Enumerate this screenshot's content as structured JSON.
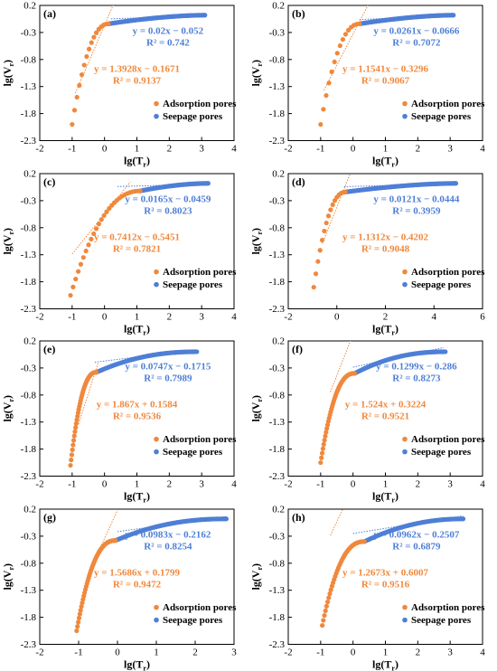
{
  "colors": {
    "adsorption": "#f0883c",
    "seepage": "#4e7fd6",
    "axis": "#000000"
  },
  "legend": {
    "adsorption": "Adsorption pores",
    "seepage": "Seepage pores"
  },
  "axes": {
    "xlabel": "lg(T",
    "xlabel_sub": "r",
    "ylabel": "lg(V",
    "ylabel_sub": "r"
  },
  "chart_data": [
    {
      "type": "scatter",
      "panel": "(a)",
      "xlim": [
        -2,
        4
      ],
      "ylim": [
        -2.3,
        0.2
      ],
      "xticks": [
        -2,
        -1,
        0,
        1,
        2,
        3,
        4
      ],
      "yticks": [
        -2.3,
        -1.8,
        -1.3,
        -0.8,
        -0.3,
        0.2
      ],
      "adsorption": {
        "x_start": -1.0,
        "x_end": 0.12,
        "y_start": -2.0,
        "y_end": -0.14,
        "n": 16,
        "shape": 0.6
      },
      "seepage": {
        "x_start": 0.12,
        "x_end": 3.1,
        "y_start": -0.14,
        "y_end": 0.02,
        "n": 90,
        "shape": 0.35
      },
      "fit_ads": {
        "slope": 1.3928,
        "intercept": -0.1671,
        "x_range": [
          -0.9,
          0.5
        ]
      },
      "fit_seep": {
        "slope": 0.02,
        "intercept": -0.052,
        "x_range": [
          0.2,
          3.1
        ]
      },
      "eq_ads": "y = 1.3928x − 0.1671",
      "r2_ads": "R² = 0.9137",
      "eq_seep": "y = 0.02x − 0.052",
      "r2_seep": "R² = 0.742"
    },
    {
      "type": "scatter",
      "panel": "(b)",
      "xlim": [
        -2,
        4
      ],
      "ylim": [
        -2.3,
        0.2
      ],
      "xticks": [
        -2,
        -1,
        0,
        1,
        2,
        3,
        4
      ],
      "yticks": [
        -2.3,
        -1.8,
        -1.3,
        -0.8,
        -0.3,
        0.2
      ],
      "adsorption": {
        "x_start": -1.0,
        "x_end": 0.2,
        "y_start": -2.0,
        "y_end": -0.14,
        "n": 15,
        "shape": 0.6
      },
      "seepage": {
        "x_start": 0.2,
        "x_end": 3.1,
        "y_start": -0.14,
        "y_end": 0.02,
        "n": 90,
        "shape": 0.35
      },
      "fit_ads": {
        "slope": 1.1541,
        "intercept": -0.3296,
        "x_range": [
          -0.9,
          0.5
        ]
      },
      "fit_seep": {
        "slope": 0.0261,
        "intercept": -0.0666,
        "x_range": [
          0.2,
          3.1
        ]
      },
      "eq_ads": "y = 1.1541x − 0.3296",
      "r2_ads": "R² = 0.9067",
      "eq_seep": "y = 0.0261x − 0.0666",
      "r2_seep": "R² = 0.7072"
    },
    {
      "type": "scatter",
      "panel": "(c)",
      "xlim": [
        -2,
        4
      ],
      "ylim": [
        -2.3,
        0.2
      ],
      "xticks": [
        -2,
        -1,
        0,
        1,
        2,
        3,
        4
      ],
      "yticks": [
        -2.3,
        -1.8,
        -1.3,
        -0.8,
        -0.3,
        0.2
      ],
      "adsorption": {
        "x_start": -1.05,
        "x_end": 1.1,
        "y_start": -2.05,
        "y_end": -0.12,
        "n": 28,
        "shape": 0.6
      },
      "seepage": {
        "x_start": 1.1,
        "x_end": 3.2,
        "y_start": -0.12,
        "y_end": 0.02,
        "n": 70,
        "shape": 0.4
      },
      "fit_ads": {
        "slope": 0.7412,
        "intercept": -0.5451,
        "x_range": [
          -1.0,
          0.8
        ]
      },
      "fit_seep": {
        "slope": 0.0165,
        "intercept": -0.0459,
        "x_range": [
          0.4,
          3.2
        ]
      },
      "eq_ads": "y = 0.7412x − 0.5451",
      "r2_ads": "R² = 0.7821",
      "eq_seep": "y = 0.0165x − 0.0459",
      "r2_seep": "R² = 0.8023"
    },
    {
      "type": "scatter",
      "panel": "(d)",
      "xlim": [
        -2,
        6
      ],
      "ylim": [
        -2.3,
        0.2
      ],
      "xticks": [
        -2,
        0,
        2,
        4,
        6
      ],
      "yticks": [
        -2.3,
        -1.8,
        -1.3,
        -0.8,
        -0.3,
        0.2
      ],
      "adsorption": {
        "x_start": -0.95,
        "x_end": 0.35,
        "y_start": -1.9,
        "y_end": -0.14,
        "n": 16,
        "shape": 0.6
      },
      "seepage": {
        "x_start": 0.35,
        "x_end": 4.9,
        "y_start": -0.14,
        "y_end": 0.02,
        "n": 95,
        "shape": 0.35
      },
      "fit_ads": {
        "slope": 1.1312,
        "intercept": -0.4202,
        "x_range": [
          -0.6,
          0.6
        ]
      },
      "fit_seep": {
        "slope": 0.0121,
        "intercept": -0.0444,
        "x_range": [
          0.3,
          4.9
        ]
      },
      "eq_ads": "y = 1.1312x − 0.4202",
      "r2_ads": "R² = 0.9048",
      "eq_seep": "y = 0.0121x − 0.0444",
      "r2_seep": "R² = 0.3959"
    },
    {
      "type": "scatter",
      "panel": "(e)",
      "xlim": [
        -2,
        4
      ],
      "ylim": [
        -2.3,
        0.2
      ],
      "xticks": [
        -2,
        -1,
        0,
        1,
        2,
        3,
        4
      ],
      "yticks": [
        -2.3,
        -1.8,
        -1.3,
        -0.8,
        -0.3,
        0.2
      ],
      "adsorption": {
        "x_start": -1.05,
        "x_end": -0.25,
        "y_start": -2.1,
        "y_end": -0.38,
        "n": 42,
        "shape": 0.7
      },
      "seepage": {
        "x_start": -0.25,
        "x_end": 2.85,
        "y_start": -0.38,
        "y_end": 0.0,
        "n": 80,
        "shape": 0.6
      },
      "fit_ads": {
        "slope": 1.867,
        "intercept": 0.1584,
        "x_range": [
          -0.8,
          -0.2
        ]
      },
      "fit_seep": {
        "slope": 0.0747,
        "intercept": -0.1715,
        "x_range": [
          -0.3,
          2.8
        ]
      },
      "eq_ads": "y = 1.867x + 0.1584",
      "r2_ads": "R² = 0.9536",
      "eq_seep": "y = 0.0747x − 0.1715",
      "r2_seep": "R² = 0.7989"
    },
    {
      "type": "scatter",
      "panel": "(f)",
      "xlim": [
        -2,
        4
      ],
      "ylim": [
        -2.3,
        0.2
      ],
      "xticks": [
        -2,
        -1,
        0,
        1,
        2,
        3,
        4
      ],
      "yticks": [
        -2.3,
        -1.8,
        -1.3,
        -0.8,
        -0.3,
        0.2
      ],
      "adsorption": {
        "x_start": -1.0,
        "x_end": 0.05,
        "y_start": -2.05,
        "y_end": -0.4,
        "n": 45,
        "shape": 0.7
      },
      "seepage": {
        "x_start": 0.05,
        "x_end": 2.85,
        "y_start": -0.4,
        "y_end": 0.0,
        "n": 80,
        "shape": 0.6
      },
      "fit_ads": {
        "slope": 1.524,
        "intercept": 0.3224,
        "x_range": [
          -0.7,
          0.0
        ]
      },
      "fit_seep": {
        "slope": 0.1299,
        "intercept": -0.286,
        "x_range": [
          0.0,
          2.8
        ]
      },
      "eq_ads": "y = 1.524x + 0.3224",
      "r2_ads": "R² = 0.9521",
      "eq_seep": "y = 0.1299x − 0.286",
      "r2_seep": "R² = 0.8273"
    },
    {
      "type": "scatter",
      "panel": "(g)",
      "xlim": [
        -2,
        3
      ],
      "ylim": [
        -2.3,
        0.2
      ],
      "xticks": [
        -2,
        -1,
        0,
        1,
        2,
        3
      ],
      "yticks": [
        -2.3,
        -1.8,
        -1.3,
        -0.8,
        -0.3,
        0.2
      ],
      "adsorption": {
        "x_start": -1.05,
        "x_end": -0.05,
        "y_start": -2.05,
        "y_end": -0.38,
        "n": 50,
        "shape": 0.7
      },
      "seepage": {
        "x_start": -0.05,
        "x_end": 2.8,
        "y_start": -0.38,
        "y_end": 0.02,
        "n": 90,
        "shape": 0.6
      },
      "fit_ads": {
        "slope": 1.5686,
        "intercept": 0.1799,
        "x_range": [
          -0.7,
          0.0
        ]
      },
      "fit_seep": {
        "slope": 0.0983,
        "intercept": -0.2162,
        "x_range": [
          0.0,
          2.8
        ]
      },
      "eq_ads": "y = 1.5686x + 0.1799",
      "r2_ads": "R² = 0.9472",
      "eq_seep": "y = 0.0983x − 0.2162",
      "r2_seep": "R² = 0.8254"
    },
    {
      "type": "scatter",
      "panel": "(h)",
      "xlim": [
        -2,
        4
      ],
      "ylim": [
        -2.3,
        0.2
      ],
      "xticks": [
        -2,
        -1,
        0,
        1,
        2,
        3,
        4
      ],
      "yticks": [
        -2.3,
        -1.8,
        -1.3,
        -0.8,
        -0.3,
        0.2
      ],
      "adsorption": {
        "x_start": -0.95,
        "x_end": 0.35,
        "y_start": -1.95,
        "y_end": -0.4,
        "n": 40,
        "shape": 0.7
      },
      "seepage": {
        "x_start": 0.35,
        "x_end": 3.4,
        "y_start": -0.4,
        "y_end": 0.02,
        "n": 80,
        "shape": 0.55
      },
      "fit_ads": {
        "slope": 1.2673,
        "intercept": 0.6007,
        "x_range": [
          -0.7,
          0.2
        ]
      },
      "fit_seep": {
        "slope": 0.0962,
        "intercept": -0.2507,
        "x_range": [
          0.0,
          3.4
        ]
      },
      "eq_ads": "y = 1.2673x + 0.6007",
      "r2_ads": "R² = 0.9516",
      "eq_seep": "y = 0.0962x − 0.2507",
      "r2_seep": "R² = 0.6879"
    }
  ]
}
